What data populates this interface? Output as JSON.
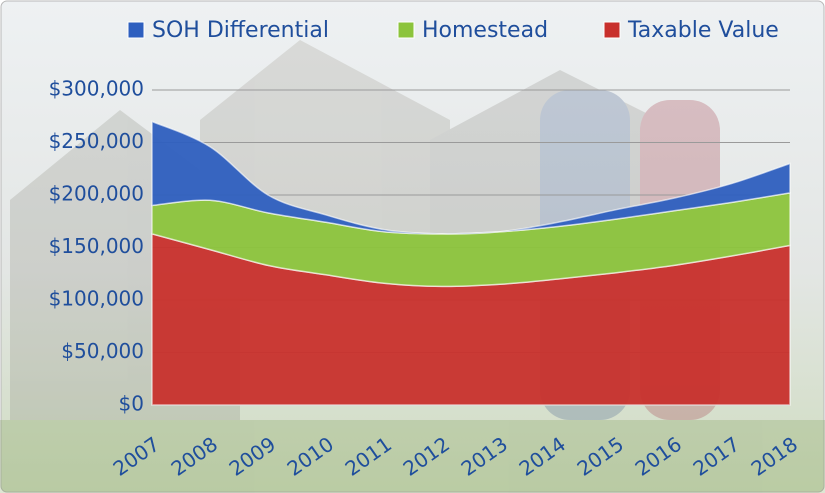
{
  "chart_data": {
    "type": "stacked-area",
    "categories": [
      "2007",
      "2008",
      "2009",
      "2010",
      "2011",
      "2012",
      "2013",
      "2014",
      "2015",
      "2016",
      "2017",
      "2018"
    ],
    "series": [
      {
        "name": "Taxable Value",
        "color": "#c8302c",
        "values": [
          163000,
          148000,
          133000,
          124000,
          116000,
          113000,
          115000,
          120000,
          126000,
          133000,
          142000,
          152000
        ]
      },
      {
        "name": "Homestead",
        "color": "#8cc43c",
        "values": [
          27000,
          47000,
          50000,
          50000,
          49000,
          50000,
          50000,
          50000,
          51000,
          52000,
          51000,
          50000
        ]
      },
      {
        "name": "SOH Differential",
        "color": "#2e5fbf",
        "values": [
          80000,
          51000,
          17000,
          7000,
          2000,
          0,
          0,
          4000,
          9000,
          12000,
          18000,
          28000
        ]
      }
    ],
    "ylim": [
      0,
      300000
    ],
    "yticks": [
      {
        "value": 0,
        "label": "$0"
      },
      {
        "value": 50000,
        "label": "$50,000"
      },
      {
        "value": 100000,
        "label": "$100,000"
      },
      {
        "value": 150000,
        "label": "$150,000"
      },
      {
        "value": 200000,
        "label": "$200,000"
      },
      {
        "value": 250000,
        "label": "$250,000"
      },
      {
        "value": 300000,
        "label": "$300,000"
      }
    ],
    "grid": true
  }
}
